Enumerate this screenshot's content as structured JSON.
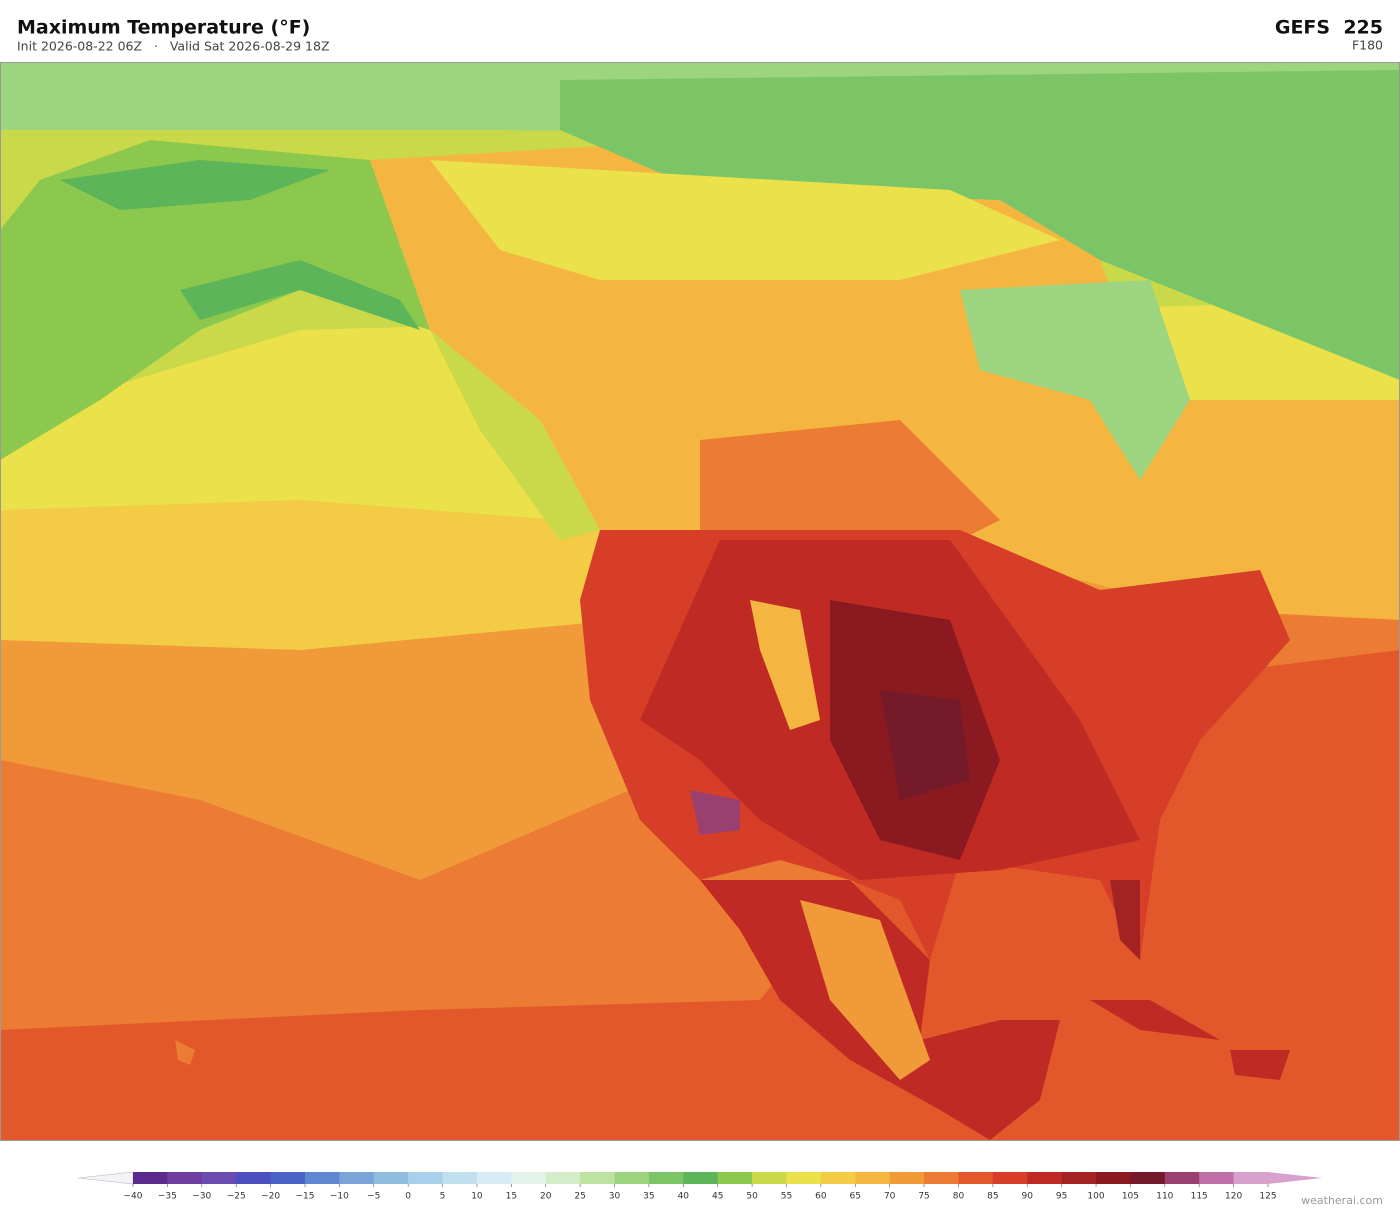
{
  "header": {
    "title": "Maximum Temperature  (°F)",
    "subtitle": "Init 2026-08-22 06Z   ·   Valid Sat 2026-08-29 18Z",
    "model": "GEFS  225",
    "forecast_hour": "F180"
  },
  "colorbar": {
    "ticks": [
      {
        "value": -40,
        "label": "−40"
      },
      {
        "value": -35,
        "label": "−35"
      },
      {
        "value": -30,
        "label": "−30"
      },
      {
        "value": -25,
        "label": "−25"
      },
      {
        "value": -20,
        "label": "−20"
      },
      {
        "value": -15,
        "label": "−15"
      },
      {
        "value": -10,
        "label": "−10"
      },
      {
        "value": -5,
        "label": "−5"
      },
      0,
      5,
      10,
      15,
      20,
      25,
      30,
      35,
      40,
      45,
      50,
      55,
      60,
      65,
      70,
      75,
      80,
      85,
      90,
      95,
      100,
      105,
      110,
      115,
      120,
      125
    ],
    "colors": [
      "#5b2a8f",
      "#6e3ea0",
      "#6a4bb0",
      "#4b4fc0",
      "#4a62c8",
      "#5f86d0",
      "#7aa3d8",
      "#8fbde0",
      "#a8d0ea",
      "#c1e0ef",
      "#d8ecf3",
      "#e5f4ea",
      "#d4ecc8",
      "#bde3a0",
      "#9dd47f",
      "#7cc566",
      "#5cb558",
      "#8cc84e",
      "#c9d94a",
      "#ebe14a",
      "#f3cb45",
      "#f4b640",
      "#f09a3a",
      "#ec7c33",
      "#e3582b",
      "#d63e27",
      "#bf2b24",
      "#a32222",
      "#8a1a20",
      "#751a28",
      "#9a4070",
      "#c070a8",
      "#d8a0cc"
    ],
    "extend_low_color": "#f4f4f8",
    "extend_high_color": "#d8a0cc"
  },
  "credit": "weatherai.com"
}
